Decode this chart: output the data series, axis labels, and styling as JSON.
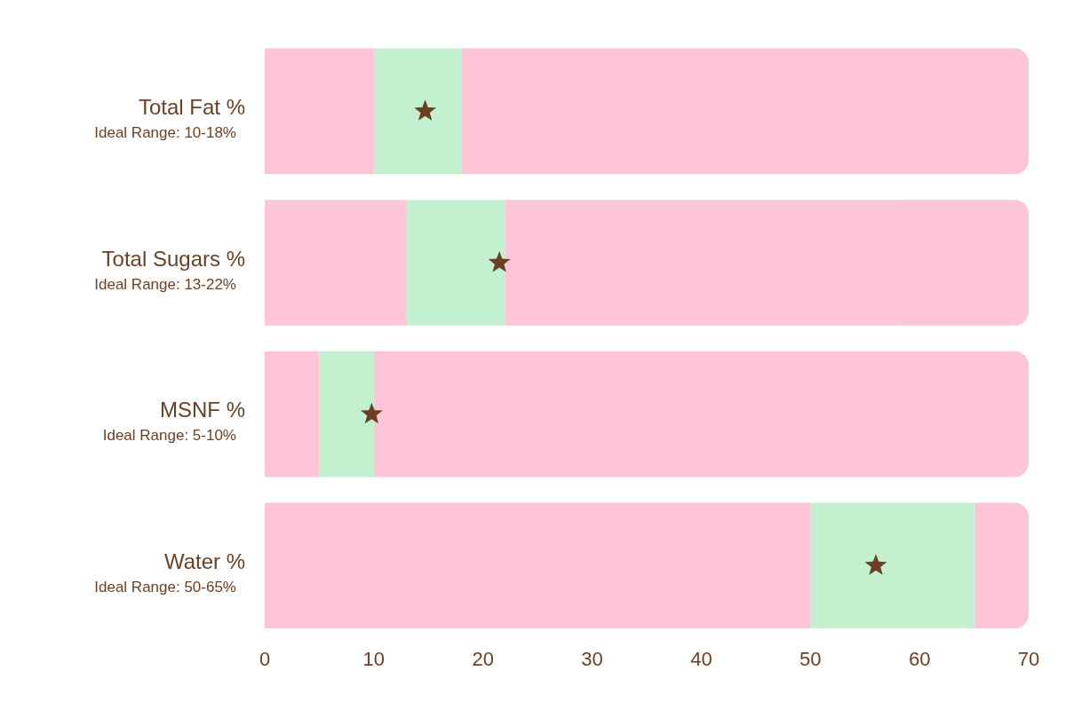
{
  "chart_data": {
    "type": "bar",
    "orientation": "horizontal",
    "stacked": true,
    "categories": [
      "Total Fat %\nIdeal Range: 10-18%",
      "Total Sugars %\nIdeal Range: 13-22%",
      "MSNF %\nIdeal Range: 5-10%",
      "Water %\nIdeal Range: 50-65%"
    ],
    "series": [
      {
        "color": "#fec5d8",
        "values": [
          10,
          13,
          5,
          50
        ]
      },
      {
        "color": "#c3f1d0",
        "values": [
          8,
          9,
          5,
          15
        ]
      },
      {
        "color": "#fec5d8",
        "values": [
          52,
          48,
          60,
          5
        ]
      },
      {
        "type": "scatter",
        "marker": "star",
        "color": "#6b3f24",
        "values": [
          14.7,
          21.5,
          9.8,
          56
        ]
      }
    ],
    "xlim": [
      0,
      70
    ],
    "xticks": [
      0,
      10,
      20,
      30,
      40,
      50,
      60,
      70
    ],
    "grid": false,
    "legend": false
  }
}
